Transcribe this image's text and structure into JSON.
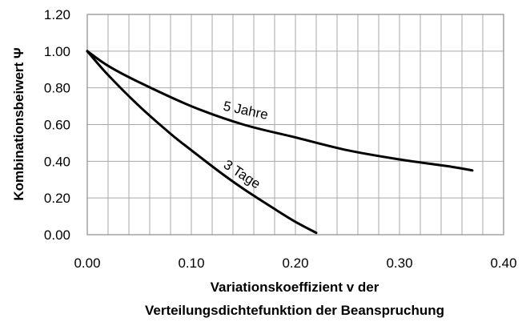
{
  "chart_data": {
    "type": "line",
    "xlabel": [
      "Variationskoeffizient v der",
      "Verteilungsdichtefunktion der Beanspruchung"
    ],
    "ylabel": "Kombinationsbeiwert Ψ",
    "xlim": [
      0,
      0.4
    ],
    "ylim": [
      0,
      1.2
    ],
    "xticks": [
      "0.00",
      "0.10",
      "0.20",
      "0.30",
      "0.40"
    ],
    "yticks": [
      "0.00",
      "0.20",
      "0.40",
      "0.60",
      "0.80",
      "1.00",
      "1.20"
    ],
    "grid": true,
    "series": [
      {
        "name": "5 Jahre",
        "x": [
          0,
          0.02,
          0.05,
          0.1,
          0.15,
          0.2,
          0.25,
          0.3,
          0.35,
          0.37
        ],
        "y": [
          1.0,
          0.92,
          0.83,
          0.7,
          0.6,
          0.53,
          0.46,
          0.41,
          0.37,
          0.35
        ]
      },
      {
        "name": "3 Tage",
        "x": [
          0,
          0.02,
          0.05,
          0.08,
          0.1,
          0.13,
          0.15,
          0.18,
          0.2,
          0.22
        ],
        "y": [
          1.0,
          0.87,
          0.7,
          0.55,
          0.46,
          0.33,
          0.25,
          0.14,
          0.07,
          0.01
        ]
      }
    ]
  }
}
